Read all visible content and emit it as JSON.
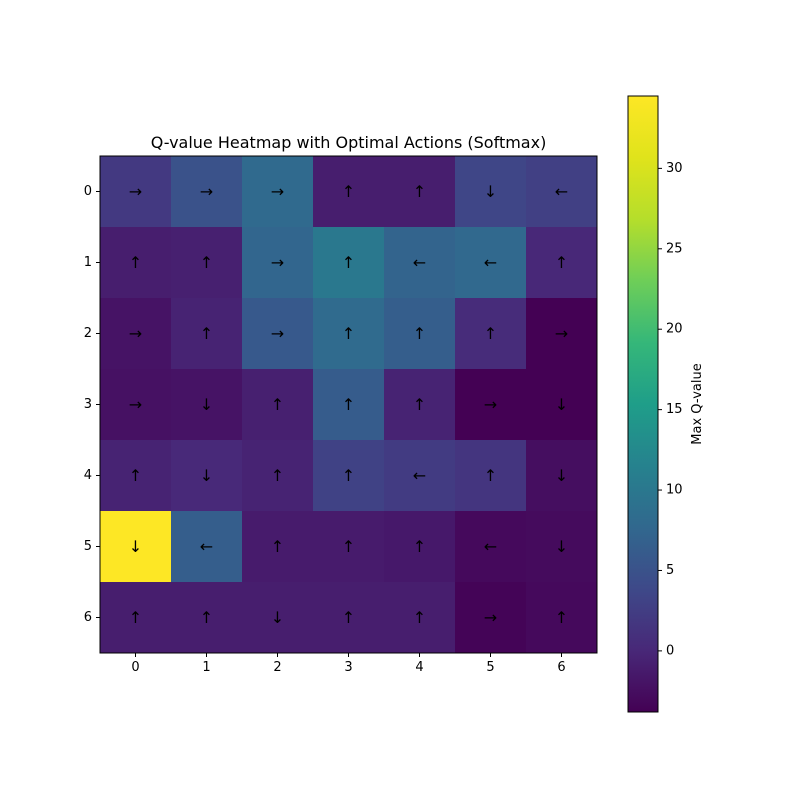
{
  "chart_data": {
    "type": "heatmap",
    "title": "Q-value Heatmap with Optimal Actions (Softmax)",
    "xlabel": "",
    "ylabel": "",
    "x_ticks": [
      "0",
      "1",
      "2",
      "3",
      "4",
      "5",
      "6"
    ],
    "y_ticks": [
      "0",
      "1",
      "2",
      "3",
      "4",
      "5",
      "6"
    ],
    "values": [
      [
        2.0,
        5.0,
        8.0,
        -1.0,
        -1.0,
        3.5,
        2.8
      ],
      [
        -1.0,
        -0.8,
        7.5,
        10.0,
        7.2,
        7.8,
        0.0
      ],
      [
        -2.0,
        -0.5,
        5.8,
        8.2,
        6.5,
        0.5,
        -4.0
      ],
      [
        -2.2,
        -2.0,
        -0.8,
        6.2,
        -0.5,
        -4.0,
        -3.8
      ],
      [
        -0.5,
        0.2,
        -0.5,
        3.0,
        2.2,
        1.5,
        -2.5
      ],
      [
        34.5,
        6.5,
        -1.2,
        -1.2,
        -1.5,
        -3.0,
        -2.8
      ],
      [
        -1.0,
        -1.0,
        -1.0,
        -1.0,
        -1.0,
        -3.5,
        -3.0
      ]
    ],
    "actions": [
      [
        "→",
        "→",
        "→",
        "↑",
        "↑",
        "↓",
        "←"
      ],
      [
        "↑",
        "↑",
        "→",
        "↑",
        "←",
        "←",
        "↑"
      ],
      [
        "→",
        "↑",
        "→",
        "↑",
        "↑",
        "↑",
        "→"
      ],
      [
        "→",
        "↓",
        "↑",
        "↑",
        "↑",
        "→",
        "↓"
      ],
      [
        "↑",
        "↓",
        "↑",
        "↑",
        "←",
        "↑",
        "↓"
      ],
      [
        "↓",
        "←",
        "↑",
        "↑",
        "↑",
        "←",
        "↓"
      ],
      [
        "↑",
        "↑",
        "↓",
        "↑",
        "↑",
        "→",
        "↑"
      ]
    ],
    "colormap": "viridis",
    "colorbar": {
      "label": "Max Q-value",
      "vmin": -3.8,
      "vmax": 34.5,
      "ticks": [
        0,
        5,
        10,
        15,
        20,
        25,
        30
      ]
    },
    "grid": false
  }
}
